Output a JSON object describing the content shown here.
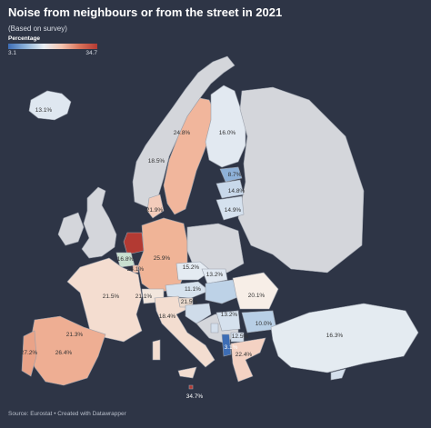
{
  "title": "Noise from neighbours or from the street in 2021",
  "subtitle": "(Based on survey)",
  "legend": {
    "title": "Percentage",
    "min_label": "3.1",
    "max_label": "34.7",
    "colors": [
      "#3d6db5",
      "#8fb3d9",
      "#e9eef4",
      "#f4c4b0",
      "#d9735a",
      "#b33a33"
    ]
  },
  "no_data_color": "#d4d6db",
  "source": "Source: Eurostat • Created with Datawrapper",
  "regions": [
    {
      "label": "13.1%"
    },
    {
      "label": "24.8%"
    },
    {
      "label": "16.0%"
    },
    {
      "label": "18.5%"
    },
    {
      "label": "8.7%"
    },
    {
      "label": "14.8%"
    },
    {
      "label": "14.9%"
    },
    {
      "label": "21.9%"
    },
    {
      "label": "25.9%"
    },
    {
      "label": "16.8%"
    },
    {
      "label": "24.1%"
    },
    {
      "label": "15.2%"
    },
    {
      "label": "13.2%"
    },
    {
      "label": "11.1%"
    },
    {
      "label": "20.1%"
    },
    {
      "label": "21.5%"
    },
    {
      "label": "21.1%"
    },
    {
      "label": "21.5%"
    },
    {
      "label": "13.2%"
    },
    {
      "label": "18.4%"
    },
    {
      "label": "10.0%"
    },
    {
      "label": "21.3%"
    },
    {
      "label": "3.1%"
    },
    {
      "label": "12.5%"
    },
    {
      "label": "16.3%"
    },
    {
      "label": "27.2%"
    },
    {
      "label": "26.4%"
    },
    {
      "label": "22.4%"
    },
    {
      "label": "34.7%"
    }
  ]
}
